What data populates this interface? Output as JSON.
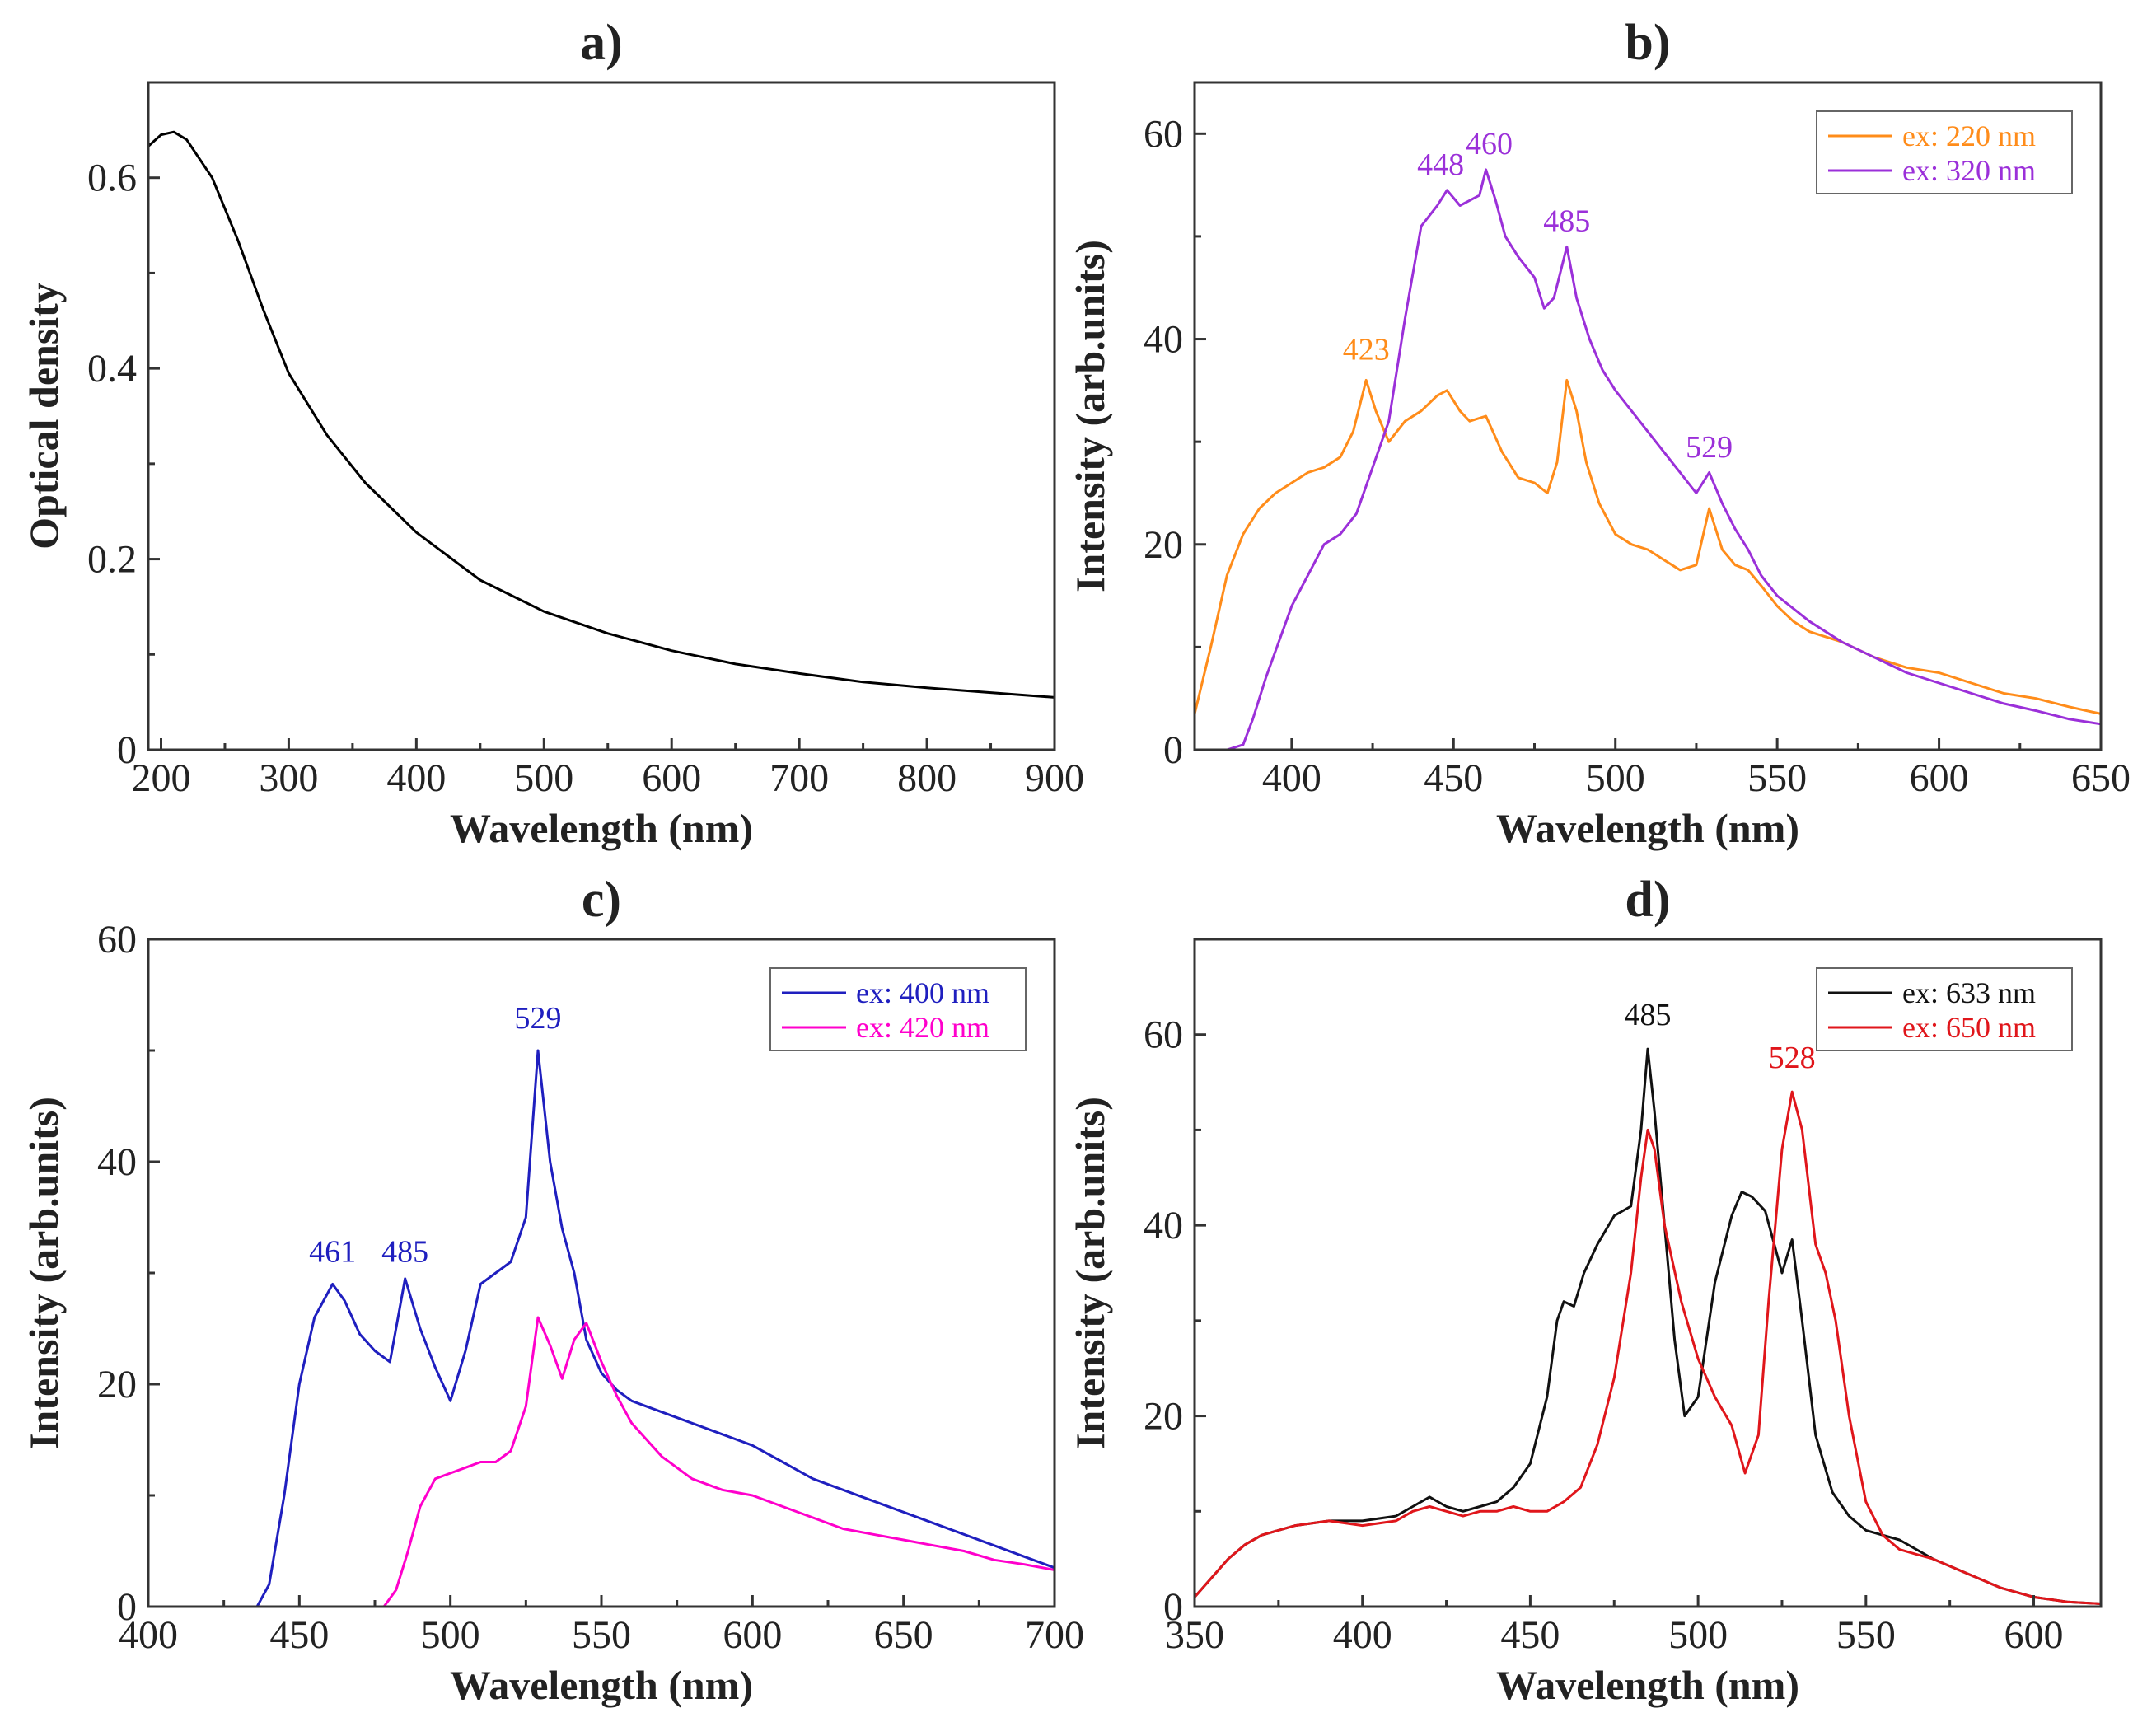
{
  "chart_data": [
    {
      "type": "line",
      "panel_label": "a)",
      "xlabel": "Wavelength (nm)",
      "ylabel": "Optical density",
      "xlim": [
        190,
        900
      ],
      "ylim": [
        0,
        0.7
      ],
      "xticks": [
        200,
        300,
        400,
        500,
        600,
        700,
        800,
        900
      ],
      "yticks": [
        0,
        0.2,
        0.4,
        0.6
      ],
      "ytick_labels": [
        "0",
        "0.2",
        "0.4",
        "0.6"
      ],
      "grid": false,
      "legend_position": "none",
      "series": [
        {
          "name": "Optical density",
          "color": "#000000",
          "x": [
            190,
            200,
            210,
            220,
            240,
            260,
            280,
            300,
            330,
            360,
            400,
            450,
            500,
            550,
            600,
            650,
            700,
            750,
            800,
            850,
            900
          ],
          "y": [
            0.633,
            0.645,
            0.648,
            0.64,
            0.6,
            0.535,
            0.462,
            0.395,
            0.33,
            0.28,
            0.228,
            0.178,
            0.145,
            0.122,
            0.104,
            0.09,
            0.08,
            0.071,
            0.065,
            0.06,
            0.055
          ]
        }
      ],
      "annotations": []
    },
    {
      "type": "line",
      "panel_label": "b)",
      "xlabel": "Wavelength (nm)",
      "ylabel": "Intensity (arb.units)",
      "xlim": [
        370,
        650
      ],
      "ylim": [
        0,
        65
      ],
      "xticks": [
        400,
        450,
        500,
        550,
        600,
        650
      ],
      "yticks": [
        0,
        20,
        40,
        60
      ],
      "ytick_labels": [
        "0",
        "20",
        "40",
        "60"
      ],
      "grid": false,
      "legend_position": "top-right",
      "series": [
        {
          "name": "ex: 220 nm",
          "color": "#ff8c1a",
          "x": [
            370,
            375,
            380,
            385,
            390,
            395,
            400,
            405,
            410,
            415,
            419,
            423,
            426,
            430,
            435,
            440,
            445,
            448,
            452,
            455,
            460,
            465,
            470,
            475,
            479,
            482,
            485,
            488,
            491,
            495,
            500,
            505,
            510,
            515,
            520,
            525,
            529,
            533,
            537,
            541,
            545,
            550,
            555,
            560,
            570,
            580,
            590,
            600,
            610,
            620,
            630,
            640,
            650
          ],
          "y": [
            3.5,
            10,
            17,
            21,
            23.5,
            25,
            26,
            27,
            27.5,
            28.5,
            31,
            36,
            33,
            30,
            32,
            33,
            34.5,
            35,
            33,
            32,
            32.5,
            29,
            26.5,
            26,
            25,
            28,
            36,
            33,
            28,
            24,
            21,
            20,
            19.5,
            18.5,
            17.5,
            18,
            23.5,
            19.5,
            18,
            17.5,
            16,
            14,
            12.5,
            11.5,
            10.5,
            9,
            8,
            7.5,
            6.5,
            5.5,
            5,
            4.2,
            3.5
          ]
        },
        {
          "name": "ex: 320 nm",
          "color": "#9b30d9",
          "x": [
            370,
            380,
            385,
            388,
            392,
            396,
            400,
            405,
            410,
            415,
            420,
            425,
            430,
            435,
            440,
            445,
            448,
            452,
            455,
            458,
            460,
            463,
            466,
            470,
            475,
            478,
            481,
            485,
            488,
            492,
            496,
            500,
            505,
            510,
            515,
            520,
            525,
            529,
            533,
            537,
            541,
            545,
            550,
            560,
            570,
            580,
            590,
            600,
            610,
            620,
            630,
            640,
            650
          ],
          "y": [
            0,
            0,
            0.5,
            3,
            7,
            10.5,
            14,
            17,
            20,
            21,
            23,
            27.5,
            32,
            42,
            51,
            53,
            54.5,
            53,
            53.5,
            54,
            56.5,
            53.5,
            50,
            48,
            46,
            43,
            44,
            49,
            44,
            40,
            37,
            35,
            33,
            31,
            29,
            27,
            25,
            27,
            24,
            21.5,
            19.5,
            17,
            15,
            12.5,
            10.5,
            9,
            7.5,
            6.5,
            5.5,
            4.5,
            3.8,
            3,
            2.5
          ]
        }
      ],
      "annotations": [
        {
          "text": "423",
          "x": 423,
          "y": 38,
          "color": "#ff8c1a"
        },
        {
          "text": "448",
          "x": 446,
          "y": 56,
          "color": "#9b30d9"
        },
        {
          "text": "460",
          "x": 461,
          "y": 58,
          "color": "#9b30d9"
        },
        {
          "text": "485",
          "x": 485,
          "y": 50.5,
          "color": "#9b30d9"
        },
        {
          "text": "529",
          "x": 529,
          "y": 28.5,
          "color": "#9b30d9"
        }
      ]
    },
    {
      "type": "line",
      "panel_label": "c)",
      "xlabel": "Wavelength (nm)",
      "ylabel": "Intensity (arb.units)",
      "xlim": [
        400,
        700
      ],
      "ylim": [
        0,
        60
      ],
      "xticks": [
        400,
        450,
        500,
        550,
        600,
        650,
        700
      ],
      "yticks": [
        0,
        20,
        40,
        60
      ],
      "ytick_labels": [
        "0",
        "20",
        "40",
        "60"
      ],
      "grid": false,
      "legend_position": "top-right",
      "series": [
        {
          "name": "ex: 400 nm",
          "color": "#1f1fbf",
          "x": [
            400,
            436,
            440,
            445,
            450,
            455,
            461,
            465,
            470,
            475,
            480,
            485,
            490,
            495,
            500,
            505,
            510,
            515,
            520,
            525,
            529,
            533,
            537,
            541,
            545,
            550,
            555,
            560,
            570,
            580,
            590,
            600,
            610,
            620,
            630,
            640,
            650,
            660,
            670,
            680,
            690,
            700
          ],
          "y": [
            0,
            0,
            2,
            10,
            20,
            26,
            29,
            27.5,
            24.5,
            23,
            22,
            29.5,
            25,
            21.5,
            18.5,
            23,
            29,
            30,
            31,
            35,
            50,
            40,
            34,
            30,
            24,
            21,
            19.5,
            18.5,
            17.5,
            16.5,
            15.5,
            14.5,
            13,
            11.5,
            10.5,
            9.5,
            8.5,
            7.5,
            6.5,
            5.5,
            4.5,
            3.5
          ]
        },
        {
          "name": "ex: 420 nm",
          "color": "#ff00cc",
          "x": [
            400,
            478,
            482,
            486,
            490,
            495,
            500,
            505,
            510,
            515,
            520,
            525,
            529,
            533,
            537,
            541,
            545,
            550,
            555,
            560,
            570,
            580,
            590,
            600,
            610,
            620,
            630,
            640,
            650,
            660,
            670,
            680,
            690,
            700
          ],
          "y": [
            0,
            0,
            1.5,
            5,
            9,
            11.5,
            12,
            12.5,
            13,
            13,
            14,
            18,
            26,
            23.5,
            20.5,
            24,
            25.5,
            22,
            19,
            16.5,
            13.5,
            11.5,
            10.5,
            10,
            9,
            8,
            7,
            6.5,
            6,
            5.5,
            5,
            4.2,
            3.8,
            3.3
          ]
        }
      ],
      "annotations": [
        {
          "text": "461",
          "x": 461,
          "y": 31,
          "color": "#1f1fbf"
        },
        {
          "text": "485",
          "x": 485,
          "y": 31,
          "color": "#1f1fbf"
        },
        {
          "text": "529",
          "x": 529,
          "y": 52,
          "color": "#1f1fbf"
        }
      ]
    },
    {
      "type": "line",
      "panel_label": "d)",
      "xlabel": "Wavelength (nm)",
      "ylabel": "Intensity (arb.units)",
      "xlim": [
        350,
        620
      ],
      "ylim": [
        0,
        70
      ],
      "xticks": [
        350,
        400,
        450,
        500,
        550,
        600
      ],
      "yticks": [
        0,
        20,
        40,
        60
      ],
      "ytick_labels": [
        "0",
        "20",
        "40",
        "60"
      ],
      "grid": false,
      "legend_position": "top-right",
      "series": [
        {
          "name": "ex: 633 nm",
          "color": "#111111",
          "x": [
            350,
            355,
            360,
            365,
            370,
            380,
            390,
            400,
            410,
            415,
            420,
            425,
            430,
            435,
            440,
            445,
            450,
            455,
            458,
            460,
            463,
            466,
            470,
            475,
            480,
            483,
            485,
            487,
            490,
            493,
            496,
            500,
            505,
            510,
            513,
            516,
            520,
            525,
            528,
            531,
            535,
            540,
            545,
            550,
            555,
            560,
            570,
            580,
            590,
            600,
            610,
            620
          ],
          "y": [
            1,
            3,
            5,
            6.5,
            7.5,
            8.5,
            9,
            9,
            9.5,
            10.5,
            11.5,
            10.5,
            10,
            10.5,
            11,
            12.5,
            15,
            22,
            30,
            32,
            31.5,
            35,
            38,
            41,
            42,
            50,
            58.5,
            52,
            40,
            28,
            20,
            22,
            34,
            41,
            43.5,
            43,
            41.5,
            35,
            38.5,
            30,
            18,
            12,
            9.5,
            8,
            7.5,
            7,
            5,
            3.5,
            2,
            1,
            0.5,
            0.3
          ]
        },
        {
          "name": "ex: 650 nm",
          "color": "#e0161b",
          "x": [
            350,
            355,
            360,
            365,
            370,
            380,
            390,
            400,
            410,
            415,
            420,
            425,
            430,
            435,
            440,
            445,
            450,
            455,
            460,
            465,
            470,
            475,
            480,
            483,
            485,
            487,
            490,
            495,
            500,
            505,
            510,
            514,
            518,
            521,
            525,
            528,
            531,
            535,
            538,
            541,
            545,
            550,
            555,
            560,
            565,
            570,
            580,
            590,
            600,
            610,
            620
          ],
          "y": [
            1,
            3,
            5,
            6.5,
            7.5,
            8.5,
            9,
            8.5,
            9,
            10,
            10.5,
            10,
            9.5,
            10,
            10,
            10.5,
            10,
            10,
            11,
            12.5,
            17,
            24,
            35,
            45,
            50,
            48,
            40,
            32,
            26,
            22,
            19,
            14,
            18,
            32,
            48,
            54,
            50,
            38,
            35,
            30,
            20,
            11,
            7.5,
            6,
            5.5,
            5,
            3.5,
            2,
            1,
            0.5,
            0.3
          ]
        }
      ],
      "annotations": [
        {
          "text": "485",
          "x": 485,
          "y": 61,
          "color": "#111111"
        },
        {
          "text": "528",
          "x": 528,
          "y": 56.5,
          "color": "#e0161b"
        }
      ]
    }
  ]
}
